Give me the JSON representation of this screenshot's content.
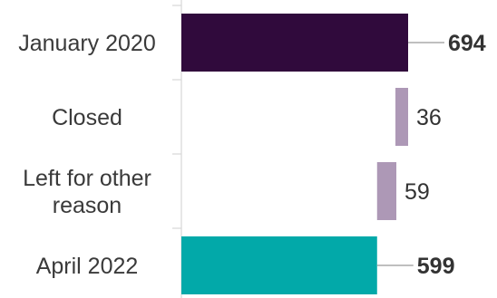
{
  "chart_data": {
    "type": "bar",
    "orientation": "horizontal",
    "style": "waterfall",
    "categories": [
      [
        "January 2020"
      ],
      [
        "Closed"
      ],
      [
        "Left for other",
        "reason"
      ],
      [
        "April 2022"
      ]
    ],
    "values": [
      694,
      36,
      59,
      599
    ],
    "value_labels": [
      "694",
      "36",
      "59",
      "599"
    ],
    "kinds": [
      "total",
      "decrease",
      "decrease",
      "total"
    ],
    "colors": [
      "#300a3c",
      "#ad98b6",
      "#ad98b6",
      "#02a9a9"
    ],
    "xlim": [
      0,
      694
    ],
    "grid": false,
    "legend": "none"
  }
}
